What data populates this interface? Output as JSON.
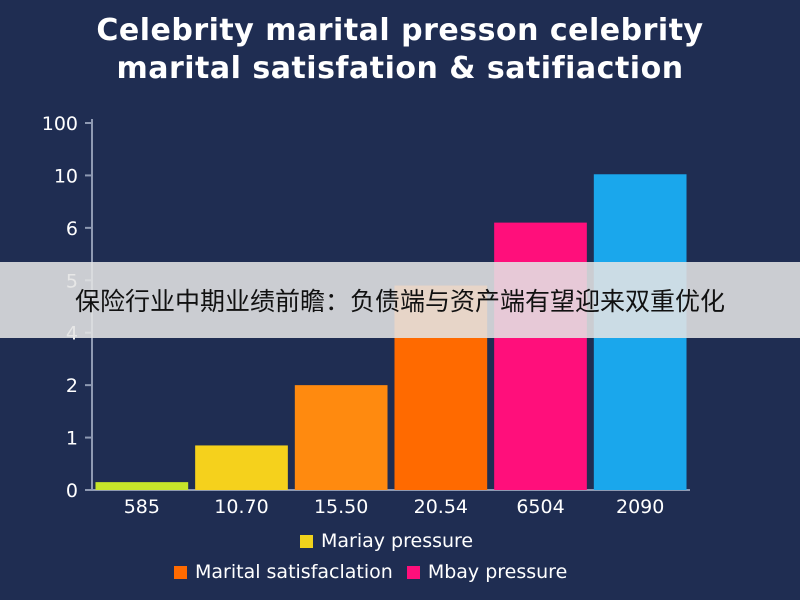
{
  "title_line1": "Celebrity marital presson celebrity",
  "title_line2": "marital satisfation & satifiaction",
  "banner_text": "保险行业中期业绩前瞻：负债端与资产端有望迎来双重优化",
  "chart_data": {
    "type": "bar",
    "title": "Celebrity marital presson celebrity marital satisfation & satifiaction",
    "categories": [
      "585",
      "10.70",
      "15.50",
      "20.54",
      "6504",
      "2090"
    ],
    "y_tick_labels": [
      "0",
      "1",
      "2",
      "4",
      "5",
      "6",
      "10",
      "100"
    ],
    "bar_colors": [
      "#c6e52a",
      "#f5d11c",
      "#ff8a0f",
      "#ff6a00",
      "#ff0f7b",
      "#1aa7ec"
    ],
    "values": [
      0.15,
      0.85,
      2.0,
      4.9,
      6.4,
      12.0
    ],
    "ylim_note": "non-linear tick scale as printed",
    "grid": false
  },
  "legend": [
    {
      "label": "Mariay pressure",
      "color": "#f0d21c"
    },
    {
      "label": "Marital satisfaclation",
      "color": "#ff6a00"
    },
    {
      "label": "Mbay pressure",
      "color": "#ff0f7b"
    }
  ],
  "colors": {
    "background": "#1f2d52",
    "axis": "#8f9ab3"
  }
}
